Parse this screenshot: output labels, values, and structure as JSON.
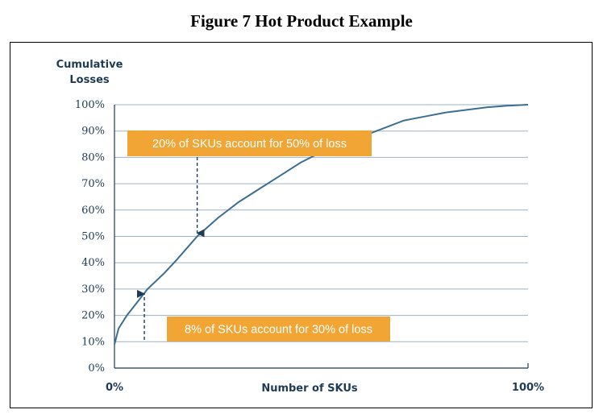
{
  "figure_title": "Figure 7 Hot Product Example",
  "chart_data": {
    "type": "line",
    "ylabel_line1": "Cumulative",
    "ylabel_line2": "Losses",
    "xlabel": "Number of SKUs",
    "yticks": [
      "0%",
      "10%",
      "20%",
      "30%",
      "40%",
      "50%",
      "60%",
      "70%",
      "80%",
      "90%",
      "100%"
    ],
    "xticks": [
      "0%",
      "100%"
    ],
    "xlim": [
      0,
      100
    ],
    "ylim": [
      0,
      100
    ],
    "grid": true,
    "series": [
      {
        "x": [
          0,
          1,
          3,
          5,
          8,
          12,
          15,
          20,
          25,
          30,
          35,
          40,
          45,
          50,
          55,
          60,
          65,
          70,
          75,
          80,
          85,
          90,
          95,
          100
        ],
        "y": [
          9,
          15,
          20,
          24,
          30,
          36,
          41,
          50,
          57,
          63,
          68,
          73,
          78,
          82,
          85,
          88,
          91,
          94,
          95.5,
          97,
          98,
          99,
          99.6,
          100
        ]
      }
    ],
    "annotations": [
      {
        "text": "20% of SKUs account for 50% of loss",
        "x": 20,
        "y": 50
      },
      {
        "text": "8% of SKUs account for 30% of loss",
        "x": 8,
        "y": 30
      }
    ],
    "colors": {
      "line": "#3c6e91",
      "grid": "#9db3c6",
      "callout": "#f0a535",
      "text": "#1e3a55"
    }
  }
}
